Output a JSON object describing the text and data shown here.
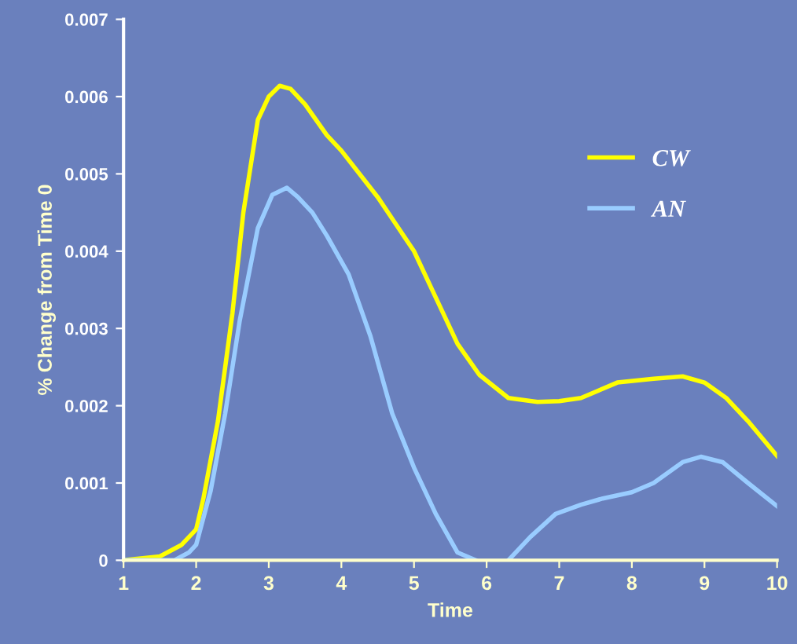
{
  "chart_data": {
    "type": "line",
    "xlabel": "Time",
    "ylabel": "% Change from Time 0",
    "xlim": [
      1,
      10
    ],
    "xticks": [
      1,
      2,
      3,
      4,
      5,
      6,
      7,
      8,
      9,
      10
    ],
    "ylim": [
      0,
      0.007
    ],
    "yticks": [
      0,
      0.001,
      0.002,
      0.003,
      0.004,
      0.005,
      0.006,
      0.007
    ],
    "grid": false,
    "legend": "top right",
    "marker": "none",
    "line_style": "solid",
    "series": [
      {
        "name": "CW",
        "color": "#ffff00",
        "x": [
          1,
          1.5,
          1.8,
          2.0,
          2.1,
          2.3,
          2.5,
          2.65,
          2.85,
          3.0,
          3.15,
          3.3,
          3.5,
          3.8,
          4.0,
          4.5,
          5.0,
          5.3,
          5.6,
          5.9,
          6.3,
          6.7,
          7.0,
          7.3,
          7.8,
          8.3,
          8.7,
          9.0,
          9.3,
          9.6,
          10
        ],
        "values": [
          0,
          5e-05,
          0.0002,
          0.0004,
          0.0008,
          0.0018,
          0.0032,
          0.0045,
          0.0057,
          0.006,
          0.00614,
          0.0061,
          0.0059,
          0.0055,
          0.0053,
          0.0047,
          0.004,
          0.0034,
          0.0028,
          0.0024,
          0.0021,
          0.00205,
          0.00206,
          0.0021,
          0.0023,
          0.00235,
          0.00238,
          0.0023,
          0.0021,
          0.0018,
          0.00135
        ]
      },
      {
        "name": "AN",
        "color": "#99ccff",
        "x": [
          1,
          1.7,
          1.9,
          2.0,
          2.2,
          2.4,
          2.6,
          2.85,
          3.05,
          3.25,
          3.4,
          3.6,
          3.8,
          4.1,
          4.4,
          4.7,
          5.0,
          5.3,
          5.6,
          5.85,
          6.05,
          6.3,
          6.6,
          6.95,
          7.3,
          7.6,
          8.0,
          8.3,
          8.7,
          8.95,
          9.25,
          9.6,
          10
        ],
        "values": [
          0,
          0,
          0.0001,
          0.0002,
          0.0009,
          0.0019,
          0.0031,
          0.0043,
          0.00473,
          0.00482,
          0.0047,
          0.0045,
          0.0042,
          0.0037,
          0.0029,
          0.0019,
          0.0012,
          0.0006,
          0.0001,
          0,
          null,
          0,
          0.0003,
          0.0006,
          0.00072,
          0.0008,
          0.00088,
          0.001,
          0.00127,
          0.00134,
          0.00127,
          0.001,
          0.0007
        ]
      }
    ]
  }
}
